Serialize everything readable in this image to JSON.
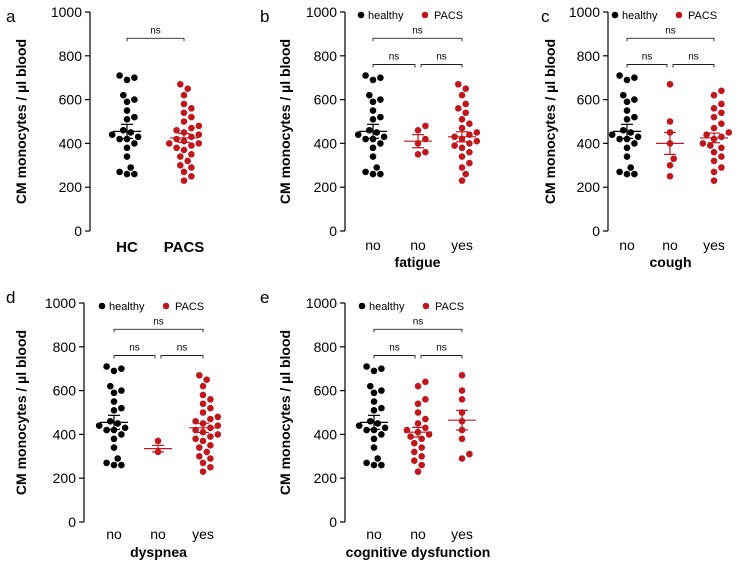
{
  "colors": {
    "healthy": "#000000",
    "pacs": "#c0161e",
    "axis": "#000000"
  },
  "legend": {
    "healthy": "healthy",
    "pacs": "PACS"
  },
  "chart_data": [
    {
      "id": "a",
      "panel_label": "a",
      "type": "scatter",
      "ylabel": "CM monocytes / µl blood",
      "xlabel": "",
      "ylim": [
        0,
        1000
      ],
      "yticks": [
        0,
        200,
        400,
        600,
        800,
        1000
      ],
      "legend": false,
      "groups": [
        {
          "label": "HC",
          "color_key": "healthy",
          "mean": 455,
          "sem": 32,
          "values": [
            710,
            690,
            700,
            620,
            600,
            590,
            550,
            520,
            510,
            460,
            450,
            440,
            430,
            420,
            420,
            400,
            380,
            340,
            290,
            270,
            260,
            260
          ]
        },
        {
          "label": "PACS",
          "color_key": "pacs",
          "mean": 425,
          "sem": 20,
          "values": [
            670,
            650,
            620,
            580,
            560,
            540,
            520,
            500,
            480,
            470,
            460,
            450,
            440,
            430,
            420,
            410,
            400,
            400,
            390,
            380,
            370,
            350,
            340,
            320,
            300,
            290,
            270,
            250,
            230
          ]
        }
      ],
      "comparisons": [
        {
          "from": 0,
          "to": 1,
          "y": 880,
          "label": "ns"
        }
      ]
    },
    {
      "id": "b",
      "panel_label": "b",
      "type": "scatter",
      "ylabel": "CM monocytes / µl blood",
      "xlabel": "fatigue",
      "ylim": [
        0,
        1000
      ],
      "yticks": [
        0,
        200,
        400,
        600,
        800,
        1000
      ],
      "legend": true,
      "groups": [
        {
          "label": "no",
          "color_key": "healthy",
          "mean": 455,
          "sem": 32,
          "values": [
            710,
            690,
            700,
            620,
            600,
            590,
            550,
            520,
            510,
            460,
            450,
            440,
            430,
            420,
            420,
            400,
            380,
            340,
            290,
            270,
            260,
            260
          ]
        },
        {
          "label": "no",
          "color_key": "pacs",
          "mean": 410,
          "sem": 30,
          "values": [
            480,
            460,
            420,
            400,
            360,
            350
          ]
        },
        {
          "label": "yes",
          "color_key": "pacs",
          "mean": 430,
          "sem": 23,
          "values": [
            670,
            650,
            620,
            580,
            560,
            540,
            510,
            490,
            470,
            450,
            440,
            430,
            420,
            410,
            400,
            390,
            380,
            360,
            340,
            310,
            290,
            260,
            230
          ]
        }
      ],
      "comparisons": [
        {
          "from": 0,
          "to": 2,
          "y": 880,
          "label": "ns"
        },
        {
          "from": 0,
          "to": 1,
          "y": 760,
          "label": "ns"
        },
        {
          "from": 1,
          "to": 2,
          "y": 760,
          "label": "ns"
        }
      ]
    },
    {
      "id": "c",
      "panel_label": "c",
      "type": "scatter",
      "ylabel": "CM monocytes / µl blood",
      "xlabel": "cough",
      "ylim": [
        0,
        1000
      ],
      "yticks": [
        0,
        200,
        400,
        600,
        800,
        1000
      ],
      "legend": true,
      "groups": [
        {
          "label": "no",
          "color_key": "healthy",
          "mean": 455,
          "sem": 32,
          "values": [
            710,
            690,
            700,
            620,
            600,
            590,
            550,
            520,
            510,
            460,
            450,
            440,
            430,
            420,
            420,
            400,
            380,
            340,
            290,
            270,
            260,
            260
          ]
        },
        {
          "label": "no",
          "color_key": "pacs",
          "mean": 400,
          "sem": 50,
          "values": [
            670,
            500,
            450,
            400,
            330,
            300,
            250
          ]
        },
        {
          "label": "yes",
          "color_key": "pacs",
          "mean": 425,
          "sem": 22,
          "values": [
            640,
            620,
            580,
            560,
            540,
            520,
            490,
            470,
            450,
            440,
            430,
            420,
            400,
            390,
            380,
            360,
            340,
            320,
            290,
            270,
            230
          ]
        }
      ],
      "comparisons": [
        {
          "from": 0,
          "to": 2,
          "y": 880,
          "label": "ns"
        },
        {
          "from": 0,
          "to": 1,
          "y": 760,
          "label": "ns"
        },
        {
          "from": 1,
          "to": 2,
          "y": 760,
          "label": "ns"
        }
      ]
    },
    {
      "id": "d",
      "panel_label": "d",
      "type": "scatter",
      "ylabel": "CM monocytes / µl blood",
      "xlabel": "dyspnea",
      "ylim": [
        0,
        1000
      ],
      "yticks": [
        0,
        200,
        400,
        600,
        800,
        1000
      ],
      "legend": true,
      "groups": [
        {
          "label": "no",
          "color_key": "healthy",
          "mean": 455,
          "sem": 32,
          "values": [
            710,
            690,
            700,
            620,
            600,
            590,
            550,
            520,
            510,
            460,
            450,
            440,
            430,
            420,
            420,
            400,
            380,
            340,
            290,
            270,
            260,
            260
          ]
        },
        {
          "label": "no",
          "color_key": "pacs",
          "mean": 335,
          "sem": 15,
          "values": [
            370,
            320
          ]
        },
        {
          "label": "yes",
          "color_key": "pacs",
          "mean": 430,
          "sem": 21,
          "values": [
            670,
            650,
            620,
            580,
            560,
            540,
            520,
            500,
            480,
            470,
            460,
            450,
            440,
            430,
            420,
            410,
            400,
            390,
            380,
            370,
            350,
            340,
            320,
            300,
            290,
            270,
            250,
            230
          ]
        }
      ],
      "comparisons": [
        {
          "from": 0,
          "to": 2,
          "y": 880,
          "label": "ns"
        },
        {
          "from": 0,
          "to": 1,
          "y": 760,
          "label": "ns"
        },
        {
          "from": 1,
          "to": 2,
          "y": 760,
          "label": "ns"
        }
      ]
    },
    {
      "id": "e",
      "panel_label": "e",
      "type": "scatter",
      "ylabel": "CM monocytes / µl blood",
      "xlabel": "cognitive dysfunction",
      "ylim": [
        0,
        1000
      ],
      "yticks": [
        0,
        200,
        400,
        600,
        800,
        1000
      ],
      "legend": true,
      "groups": [
        {
          "label": "no",
          "color_key": "healthy",
          "mean": 455,
          "sem": 32,
          "values": [
            710,
            690,
            700,
            620,
            600,
            590,
            550,
            520,
            510,
            460,
            450,
            440,
            430,
            420,
            420,
            400,
            380,
            340,
            290,
            270,
            260,
            260
          ]
        },
        {
          "label": "no",
          "color_key": "pacs",
          "mean": 410,
          "sem": 22,
          "values": [
            640,
            620,
            560,
            540,
            500,
            470,
            450,
            430,
            420,
            410,
            400,
            390,
            380,
            360,
            340,
            320,
            300,
            280,
            260,
            230
          ]
        },
        {
          "label": "yes",
          "color_key": "pacs",
          "mean": 465,
          "sem": 45,
          "values": [
            670,
            600,
            560,
            500,
            460,
            420,
            380,
            310,
            290
          ]
        }
      ],
      "comparisons": [
        {
          "from": 0,
          "to": 2,
          "y": 880,
          "label": "ns"
        },
        {
          "from": 0,
          "to": 1,
          "y": 760,
          "label": "ns"
        },
        {
          "from": 1,
          "to": 2,
          "y": 760,
          "label": "ns"
        }
      ]
    }
  ]
}
